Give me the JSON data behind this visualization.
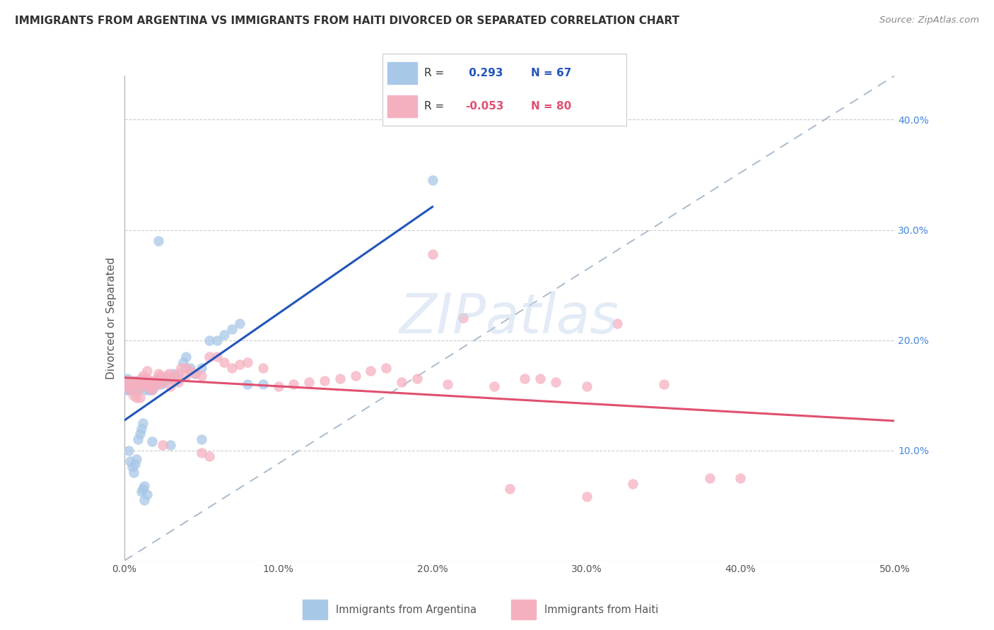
{
  "title": "IMMIGRANTS FROM ARGENTINA VS IMMIGRANTS FROM HAITI DIVORCED OR SEPARATED CORRELATION CHART",
  "source": "Source: ZipAtlas.com",
  "ylabel": "Divorced or Separated",
  "xlim": [
    0.0,
    0.5
  ],
  "ylim": [
    0.0,
    0.44
  ],
  "argentina_color": "#a8c8e8",
  "haiti_color": "#f5b0c0",
  "argentina_line_color": "#2255bb",
  "haiti_line_color": "#e05070",
  "R_argentina": 0.293,
  "N_argentina": 67,
  "R_haiti": -0.053,
  "N_haiti": 80,
  "legend_argentina": "Immigrants from Argentina",
  "legend_haiti": "Immigrants from Haiti",
  "watermark": "ZIPatlas",
  "argentina_x": [
    0.001,
    0.002,
    0.002,
    0.003,
    0.003,
    0.004,
    0.004,
    0.005,
    0.005,
    0.006,
    0.006,
    0.007,
    0.007,
    0.008,
    0.008,
    0.009,
    0.009,
    0.01,
    0.01,
    0.011,
    0.011,
    0.012,
    0.013,
    0.014,
    0.015,
    0.016,
    0.017,
    0.018,
    0.019,
    0.02,
    0.021,
    0.022,
    0.024,
    0.026,
    0.028,
    0.03,
    0.032,
    0.035,
    0.038,
    0.04,
    0.043,
    0.046,
    0.05,
    0.055,
    0.06,
    0.065,
    0.07,
    0.075,
    0.08,
    0.09,
    0.003,
    0.004,
    0.005,
    0.006,
    0.007,
    0.008,
    0.009,
    0.01,
    0.011,
    0.012,
    0.013,
    0.015,
    0.018,
    0.022,
    0.03,
    0.05,
    0.2
  ],
  "argentina_y": [
    0.16,
    0.155,
    0.165,
    0.16,
    0.155,
    0.158,
    0.162,
    0.155,
    0.16,
    0.158,
    0.162,
    0.155,
    0.16,
    0.163,
    0.158,
    0.16,
    0.155,
    0.162,
    0.158,
    0.16,
    0.063,
    0.065,
    0.068,
    0.155,
    0.16,
    0.155,
    0.158,
    0.155,
    0.16,
    0.158,
    0.162,
    0.163,
    0.16,
    0.162,
    0.165,
    0.165,
    0.17,
    0.165,
    0.18,
    0.185,
    0.175,
    0.17,
    0.175,
    0.2,
    0.2,
    0.205,
    0.21,
    0.215,
    0.16,
    0.16,
    0.1,
    0.09,
    0.085,
    0.08,
    0.088,
    0.092,
    0.11,
    0.115,
    0.12,
    0.125,
    0.055,
    0.06,
    0.108,
    0.29,
    0.105,
    0.11,
    0.345
  ],
  "haiti_x": [
    0.001,
    0.002,
    0.003,
    0.004,
    0.005,
    0.006,
    0.007,
    0.008,
    0.009,
    0.01,
    0.011,
    0.012,
    0.013,
    0.014,
    0.015,
    0.016,
    0.017,
    0.018,
    0.019,
    0.02,
    0.021,
    0.022,
    0.023,
    0.024,
    0.025,
    0.027,
    0.029,
    0.031,
    0.033,
    0.035,
    0.037,
    0.04,
    0.043,
    0.046,
    0.05,
    0.055,
    0.06,
    0.065,
    0.07,
    0.075,
    0.08,
    0.09,
    0.1,
    0.11,
    0.12,
    0.13,
    0.14,
    0.15,
    0.16,
    0.17,
    0.18,
    0.19,
    0.2,
    0.21,
    0.22,
    0.24,
    0.26,
    0.28,
    0.3,
    0.32,
    0.35,
    0.38,
    0.4,
    0.006,
    0.008,
    0.01,
    0.012,
    0.015,
    0.018,
    0.022,
    0.025,
    0.03,
    0.035,
    0.04,
    0.05,
    0.055,
    0.27,
    0.3,
    0.25,
    0.33
  ],
  "haiti_y": [
    0.158,
    0.162,
    0.16,
    0.155,
    0.163,
    0.158,
    0.16,
    0.162,
    0.155,
    0.16,
    0.165,
    0.16,
    0.162,
    0.158,
    0.165,
    0.16,
    0.163,
    0.158,
    0.162,
    0.16,
    0.165,
    0.17,
    0.168,
    0.165,
    0.162,
    0.168,
    0.17,
    0.165,
    0.168,
    0.17,
    0.175,
    0.175,
    0.172,
    0.17,
    0.168,
    0.185,
    0.185,
    0.18,
    0.175,
    0.178,
    0.18,
    0.175,
    0.158,
    0.16,
    0.162,
    0.163,
    0.165,
    0.168,
    0.172,
    0.175,
    0.162,
    0.165,
    0.278,
    0.16,
    0.22,
    0.158,
    0.165,
    0.162,
    0.158,
    0.215,
    0.16,
    0.075,
    0.075,
    0.15,
    0.148,
    0.148,
    0.168,
    0.172,
    0.155,
    0.16,
    0.105,
    0.158,
    0.162,
    0.168,
    0.098,
    0.095,
    0.165,
    0.058,
    0.065,
    0.07
  ]
}
